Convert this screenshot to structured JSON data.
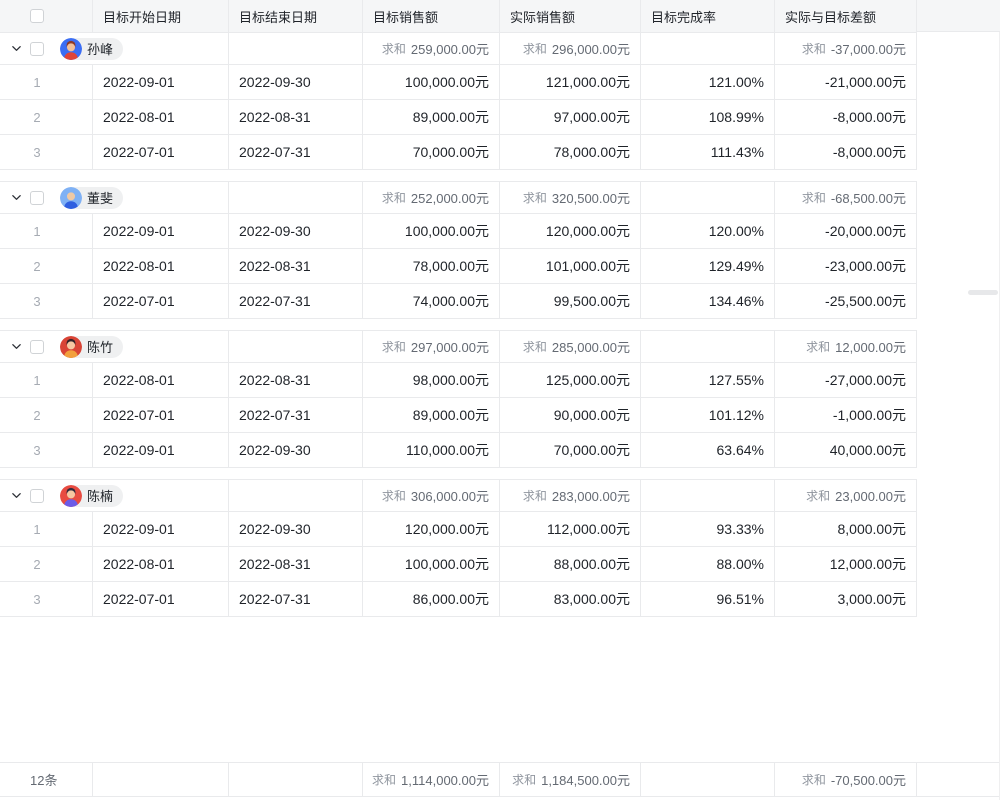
{
  "table": {
    "sum_label": "求和",
    "columns": [
      {
        "label": "目标开始日期"
      },
      {
        "label": "目标结束日期"
      },
      {
        "label": "目标销售额"
      },
      {
        "label": "实际销售额"
      },
      {
        "label": "目标完成率"
      },
      {
        "label": "实际与目标差额"
      }
    ],
    "groups": [
      {
        "name": "孙峰",
        "avatar": {
          "bg": "#3b6ef5",
          "skin": "#f2c09a",
          "hair": "#8c3a2a",
          "shirt": "#e04539"
        },
        "sums": {
          "target": "259,000.00元",
          "actual": "296,000.00元",
          "diff": "-37,000.00元"
        },
        "rows": [
          {
            "index": "1",
            "start": "2022-09-01",
            "end": "2022-09-30",
            "target": "100,000.00元",
            "actual": "121,000.00元",
            "rate": "121.00%",
            "diff": "-21,000.00元"
          },
          {
            "index": "2",
            "start": "2022-08-01",
            "end": "2022-08-31",
            "target": "89,000.00元",
            "actual": "97,000.00元",
            "rate": "108.99%",
            "diff": "-8,000.00元"
          },
          {
            "index": "3",
            "start": "2022-07-01",
            "end": "2022-07-31",
            "target": "70,000.00元",
            "actual": "78,000.00元",
            "rate": "111.43%",
            "diff": "-8,000.00元"
          }
        ]
      },
      {
        "name": "董斐",
        "avatar": {
          "bg": "#7fb1f5",
          "skin": "#efc9a5",
          "hair": null,
          "shirt": "#2f5fe0"
        },
        "sums": {
          "target": "252,000.00元",
          "actual": "320,500.00元",
          "diff": "-68,500.00元"
        },
        "rows": [
          {
            "index": "1",
            "start": "2022-09-01",
            "end": "2022-09-30",
            "target": "100,000.00元",
            "actual": "120,000.00元",
            "rate": "120.00%",
            "diff": "-20,000.00元"
          },
          {
            "index": "2",
            "start": "2022-08-01",
            "end": "2022-08-31",
            "target": "78,000.00元",
            "actual": "101,000.00元",
            "rate": "129.49%",
            "diff": "-23,000.00元"
          },
          {
            "index": "3",
            "start": "2022-07-01",
            "end": "2022-07-31",
            "target": "74,000.00元",
            "actual": "99,500.00元",
            "rate": "134.46%",
            "diff": "-25,500.00元"
          }
        ]
      },
      {
        "name": "陈竹",
        "avatar": {
          "bg": "#d94436",
          "skin": "#f6c7a2",
          "hair": "#33232a",
          "shirt": "#f2a03d"
        },
        "sums": {
          "target": "297,000.00元",
          "actual": "285,000.00元",
          "diff": "12,000.00元"
        },
        "rows": [
          {
            "index": "1",
            "start": "2022-08-01",
            "end": "2022-08-31",
            "target": "98,000.00元",
            "actual": "125,000.00元",
            "rate": "127.55%",
            "diff": "-27,000.00元"
          },
          {
            "index": "2",
            "start": "2022-07-01",
            "end": "2022-07-31",
            "target": "89,000.00元",
            "actual": "90,000.00元",
            "rate": "101.12%",
            "diff": "-1,000.00元"
          },
          {
            "index": "3",
            "start": "2022-09-01",
            "end": "2022-09-30",
            "target": "110,000.00元",
            "actual": "70,000.00元",
            "rate": "63.64%",
            "diff": "40,000.00元"
          }
        ]
      },
      {
        "name": "陈楠",
        "avatar": {
          "bg": "#e84b41",
          "skin": "#f6c7a2",
          "hair": "#322a3d",
          "shirt": "#6b5be8"
        },
        "sums": {
          "target": "306,000.00元",
          "actual": "283,000.00元",
          "diff": "23,000.00元"
        },
        "rows": [
          {
            "index": "1",
            "start": "2022-09-01",
            "end": "2022-09-30",
            "target": "120,000.00元",
            "actual": "112,000.00元",
            "rate": "93.33%",
            "diff": "8,000.00元"
          },
          {
            "index": "2",
            "start": "2022-08-01",
            "end": "2022-08-31",
            "target": "100,000.00元",
            "actual": "88,000.00元",
            "rate": "88.00%",
            "diff": "12,000.00元"
          },
          {
            "index": "3",
            "start": "2022-07-01",
            "end": "2022-07-31",
            "target": "86,000.00元",
            "actual": "83,000.00元",
            "rate": "96.51%",
            "diff": "3,000.00元"
          }
        ]
      }
    ],
    "footer": {
      "count": "12条",
      "target": "1,114,000.00元",
      "actual": "1,184,500.00元",
      "diff": "-70,500.00元"
    }
  }
}
